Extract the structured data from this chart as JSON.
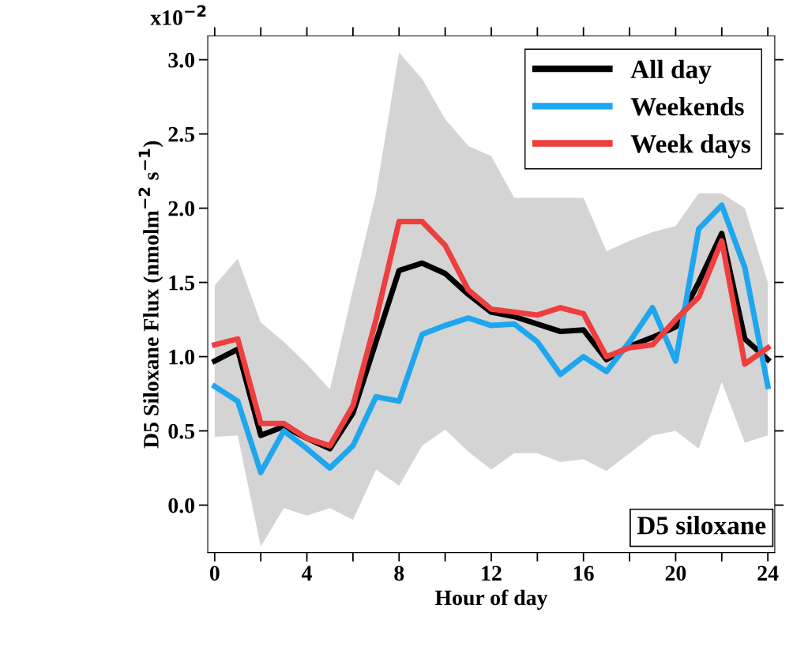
{
  "chart_data": {
    "type": "line",
    "xlabel": "Hour of day",
    "ylabel": "D5 Siloxane Flux (nmolm$^{−2}$ s$^{−1}$)",
    "x": [
      0,
      1,
      2,
      3,
      4,
      5,
      6,
      7,
      8,
      9,
      10,
      11,
      12,
      13,
      14,
      15,
      16,
      17,
      18,
      19,
      20,
      21,
      22,
      23,
      24
    ],
    "series": [
      {
        "name": "All day",
        "color": "#000000",
        "values": [
          0.97,
          1.05,
          0.47,
          0.53,
          0.45,
          0.38,
          0.62,
          1.1,
          1.58,
          1.63,
          1.56,
          1.42,
          1.3,
          1.27,
          1.22,
          1.17,
          1.18,
          0.98,
          1.07,
          1.13,
          1.2,
          1.5,
          1.83,
          1.12,
          0.98
        ],
        "lower": [
          0.46,
          0.47,
          -0.28,
          -0.02,
          -0.07,
          -0.02,
          -0.1,
          0.24,
          0.13,
          0.4,
          0.51,
          0.36,
          0.24,
          0.35,
          0.35,
          0.29,
          0.31,
          0.23,
          0.35,
          0.47,
          0.5,
          0.38,
          0.83,
          0.42,
          0.47
        ],
        "upper": [
          1.48,
          1.66,
          1.23,
          1.1,
          0.95,
          0.78,
          1.45,
          2.1,
          3.05,
          2.87,
          2.6,
          2.42,
          2.35,
          2.07,
          2.07,
          2.07,
          2.07,
          1.71,
          1.78,
          1.84,
          1.88,
          2.1,
          2.1,
          2.0,
          1.5
        ]
      },
      {
        "name": "Weekends",
        "color": "#1ea6ee",
        "values": [
          0.8,
          0.7,
          0.22,
          0.5,
          0.38,
          0.25,
          0.4,
          0.73,
          0.7,
          1.15,
          1.21,
          1.26,
          1.21,
          1.22,
          1.1,
          0.88,
          1.0,
          0.9,
          1.1,
          1.33,
          0.97,
          1.86,
          2.02,
          1.6,
          0.8
        ]
      },
      {
        "name": "Week days",
        "color": "#ef3e3e",
        "values": [
          1.08,
          1.12,
          0.55,
          0.55,
          0.45,
          0.4,
          0.67,
          1.25,
          1.91,
          1.91,
          1.75,
          1.45,
          1.32,
          1.3,
          1.28,
          1.33,
          1.29,
          1.0,
          1.06,
          1.08,
          1.25,
          1.4,
          1.78,
          0.95,
          1.06
        ]
      }
    ],
    "xlim": [
      -0.3,
      24.3
    ],
    "ylim": [
      -0.32,
      3.16
    ],
    "xticks": [
      0,
      {
        "value": 2,
        "label": null
      },
      4,
      {
        "value": 6,
        "label": null
      },
      8,
      {
        "value": 10,
        "label": null
      },
      12,
      {
        "value": 14,
        "label": null
      },
      16,
      {
        "value": 18,
        "label": null
      },
      20,
      {
        "value": 22,
        "label": null
      },
      24
    ],
    "yticks": [
      {
        "value": 0,
        "label": "0.0"
      },
      0.5,
      {
        "value": 1,
        "label": "1.0"
      },
      1.5,
      {
        "value": 2,
        "label": "2.0"
      },
      2.5,
      {
        "value": 3,
        "label": "3.0"
      }
    ],
    "annotations": [
      "x10$^{−2}$",
      "D5 siloxane"
    ],
    "legend": "top right",
    "grid": false
  }
}
